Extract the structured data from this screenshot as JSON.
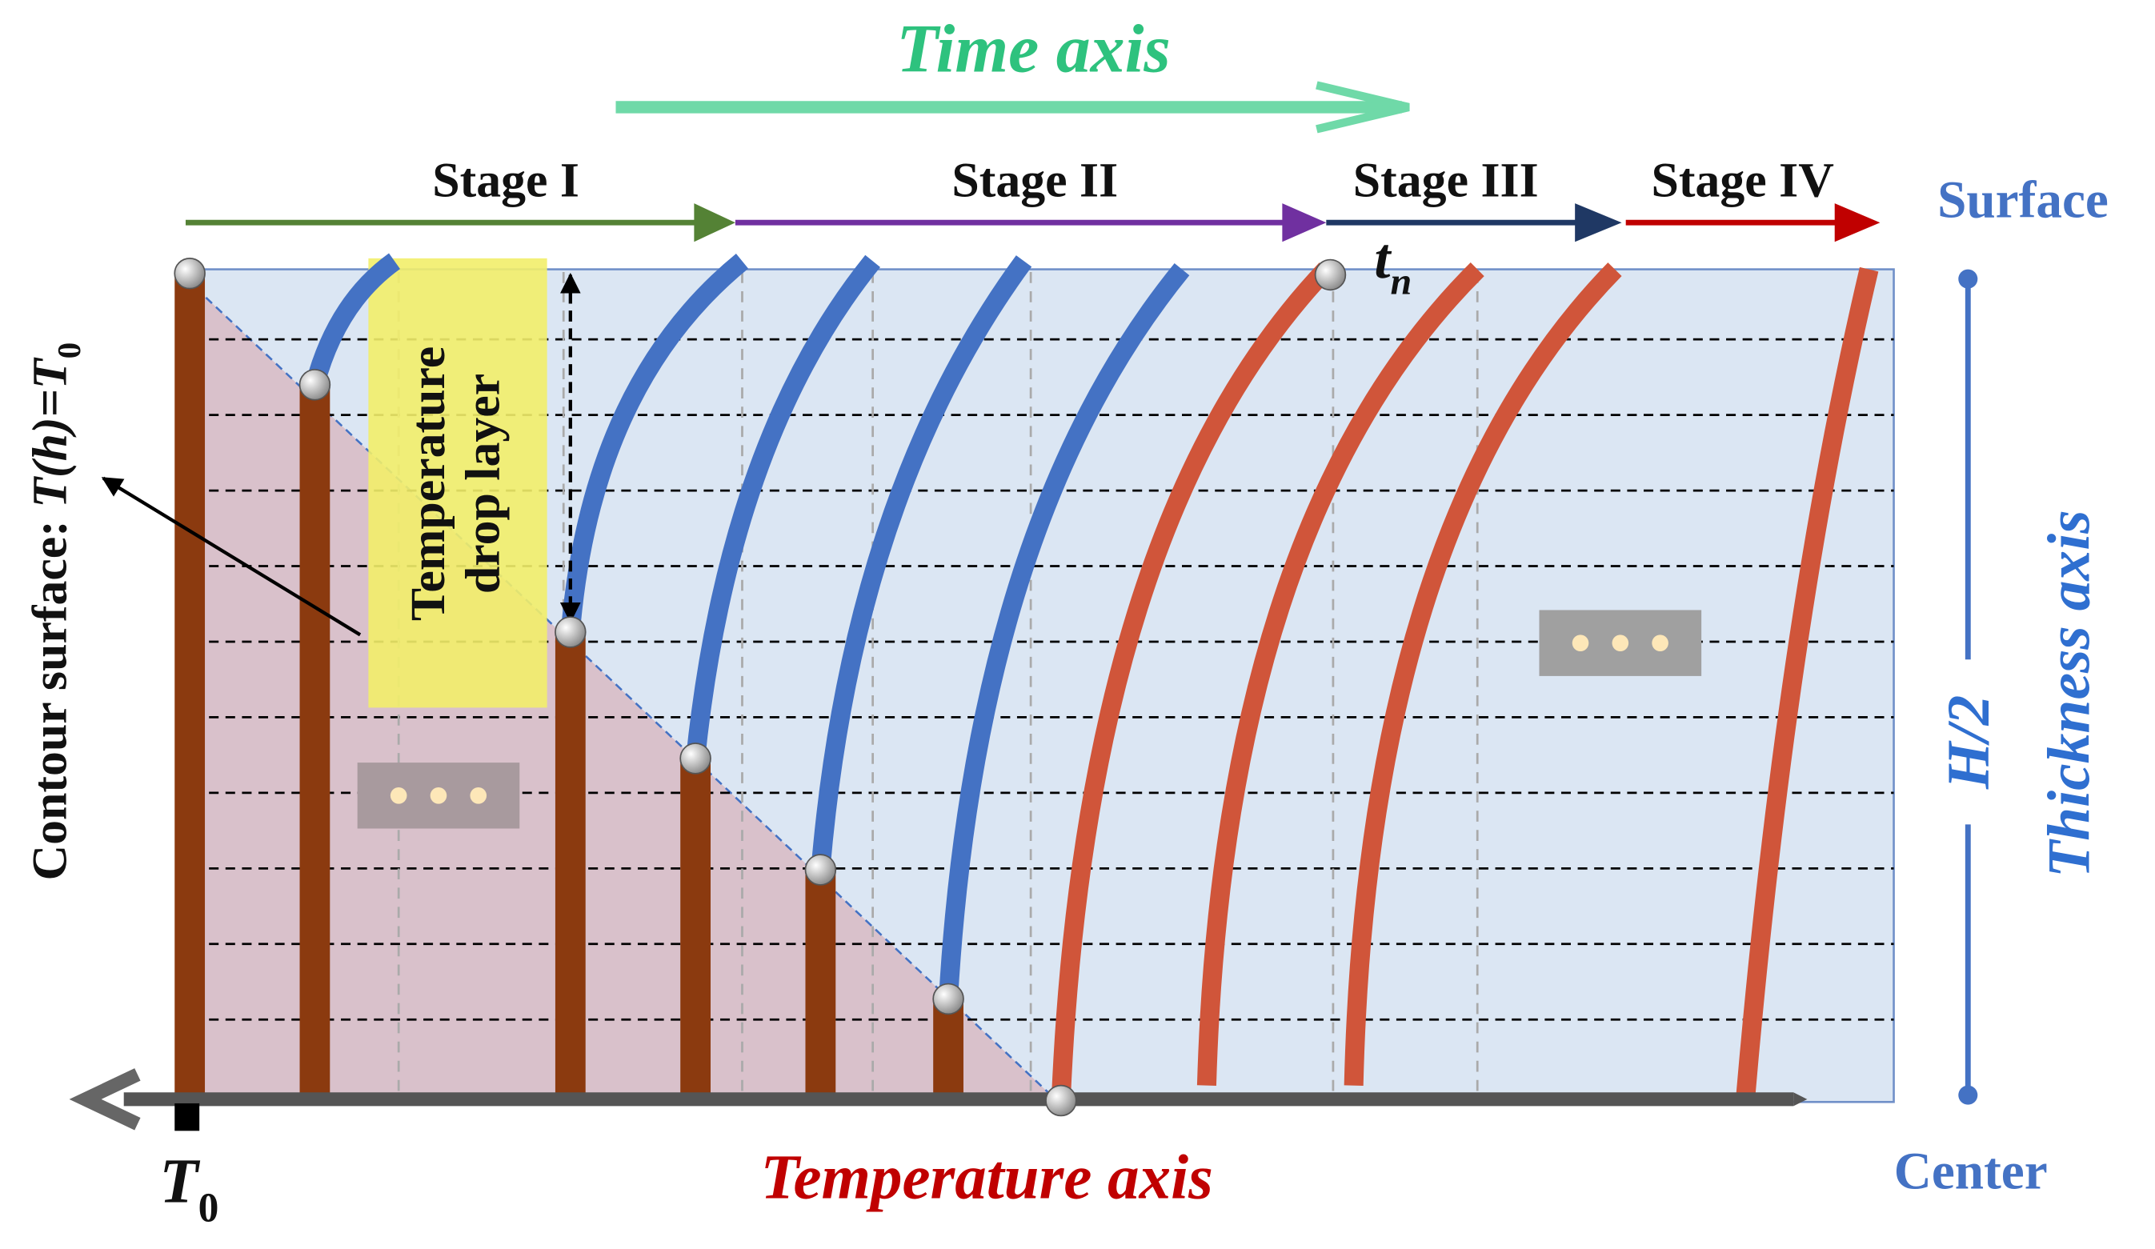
{
  "time_axis": "Time axis",
  "stages": [
    "Stage I",
    "Stage II",
    "Stage III",
    "Stage IV"
  ],
  "surface": "Surface",
  "center": "Center",
  "half_thickness": "H/2",
  "thickness_axis": "Thickness axis",
  "temperature_axis": "Temperature axis",
  "t0": {
    "symbol": "T",
    "subscript": "0"
  },
  "tn": {
    "symbol": "t",
    "subscript": "n"
  },
  "contour": {
    "prefix": "Contour surface: ",
    "formula": "T(h)=T",
    "subscript": "0"
  },
  "drop_layer": [
    "Temperature",
    "drop layer"
  ]
}
